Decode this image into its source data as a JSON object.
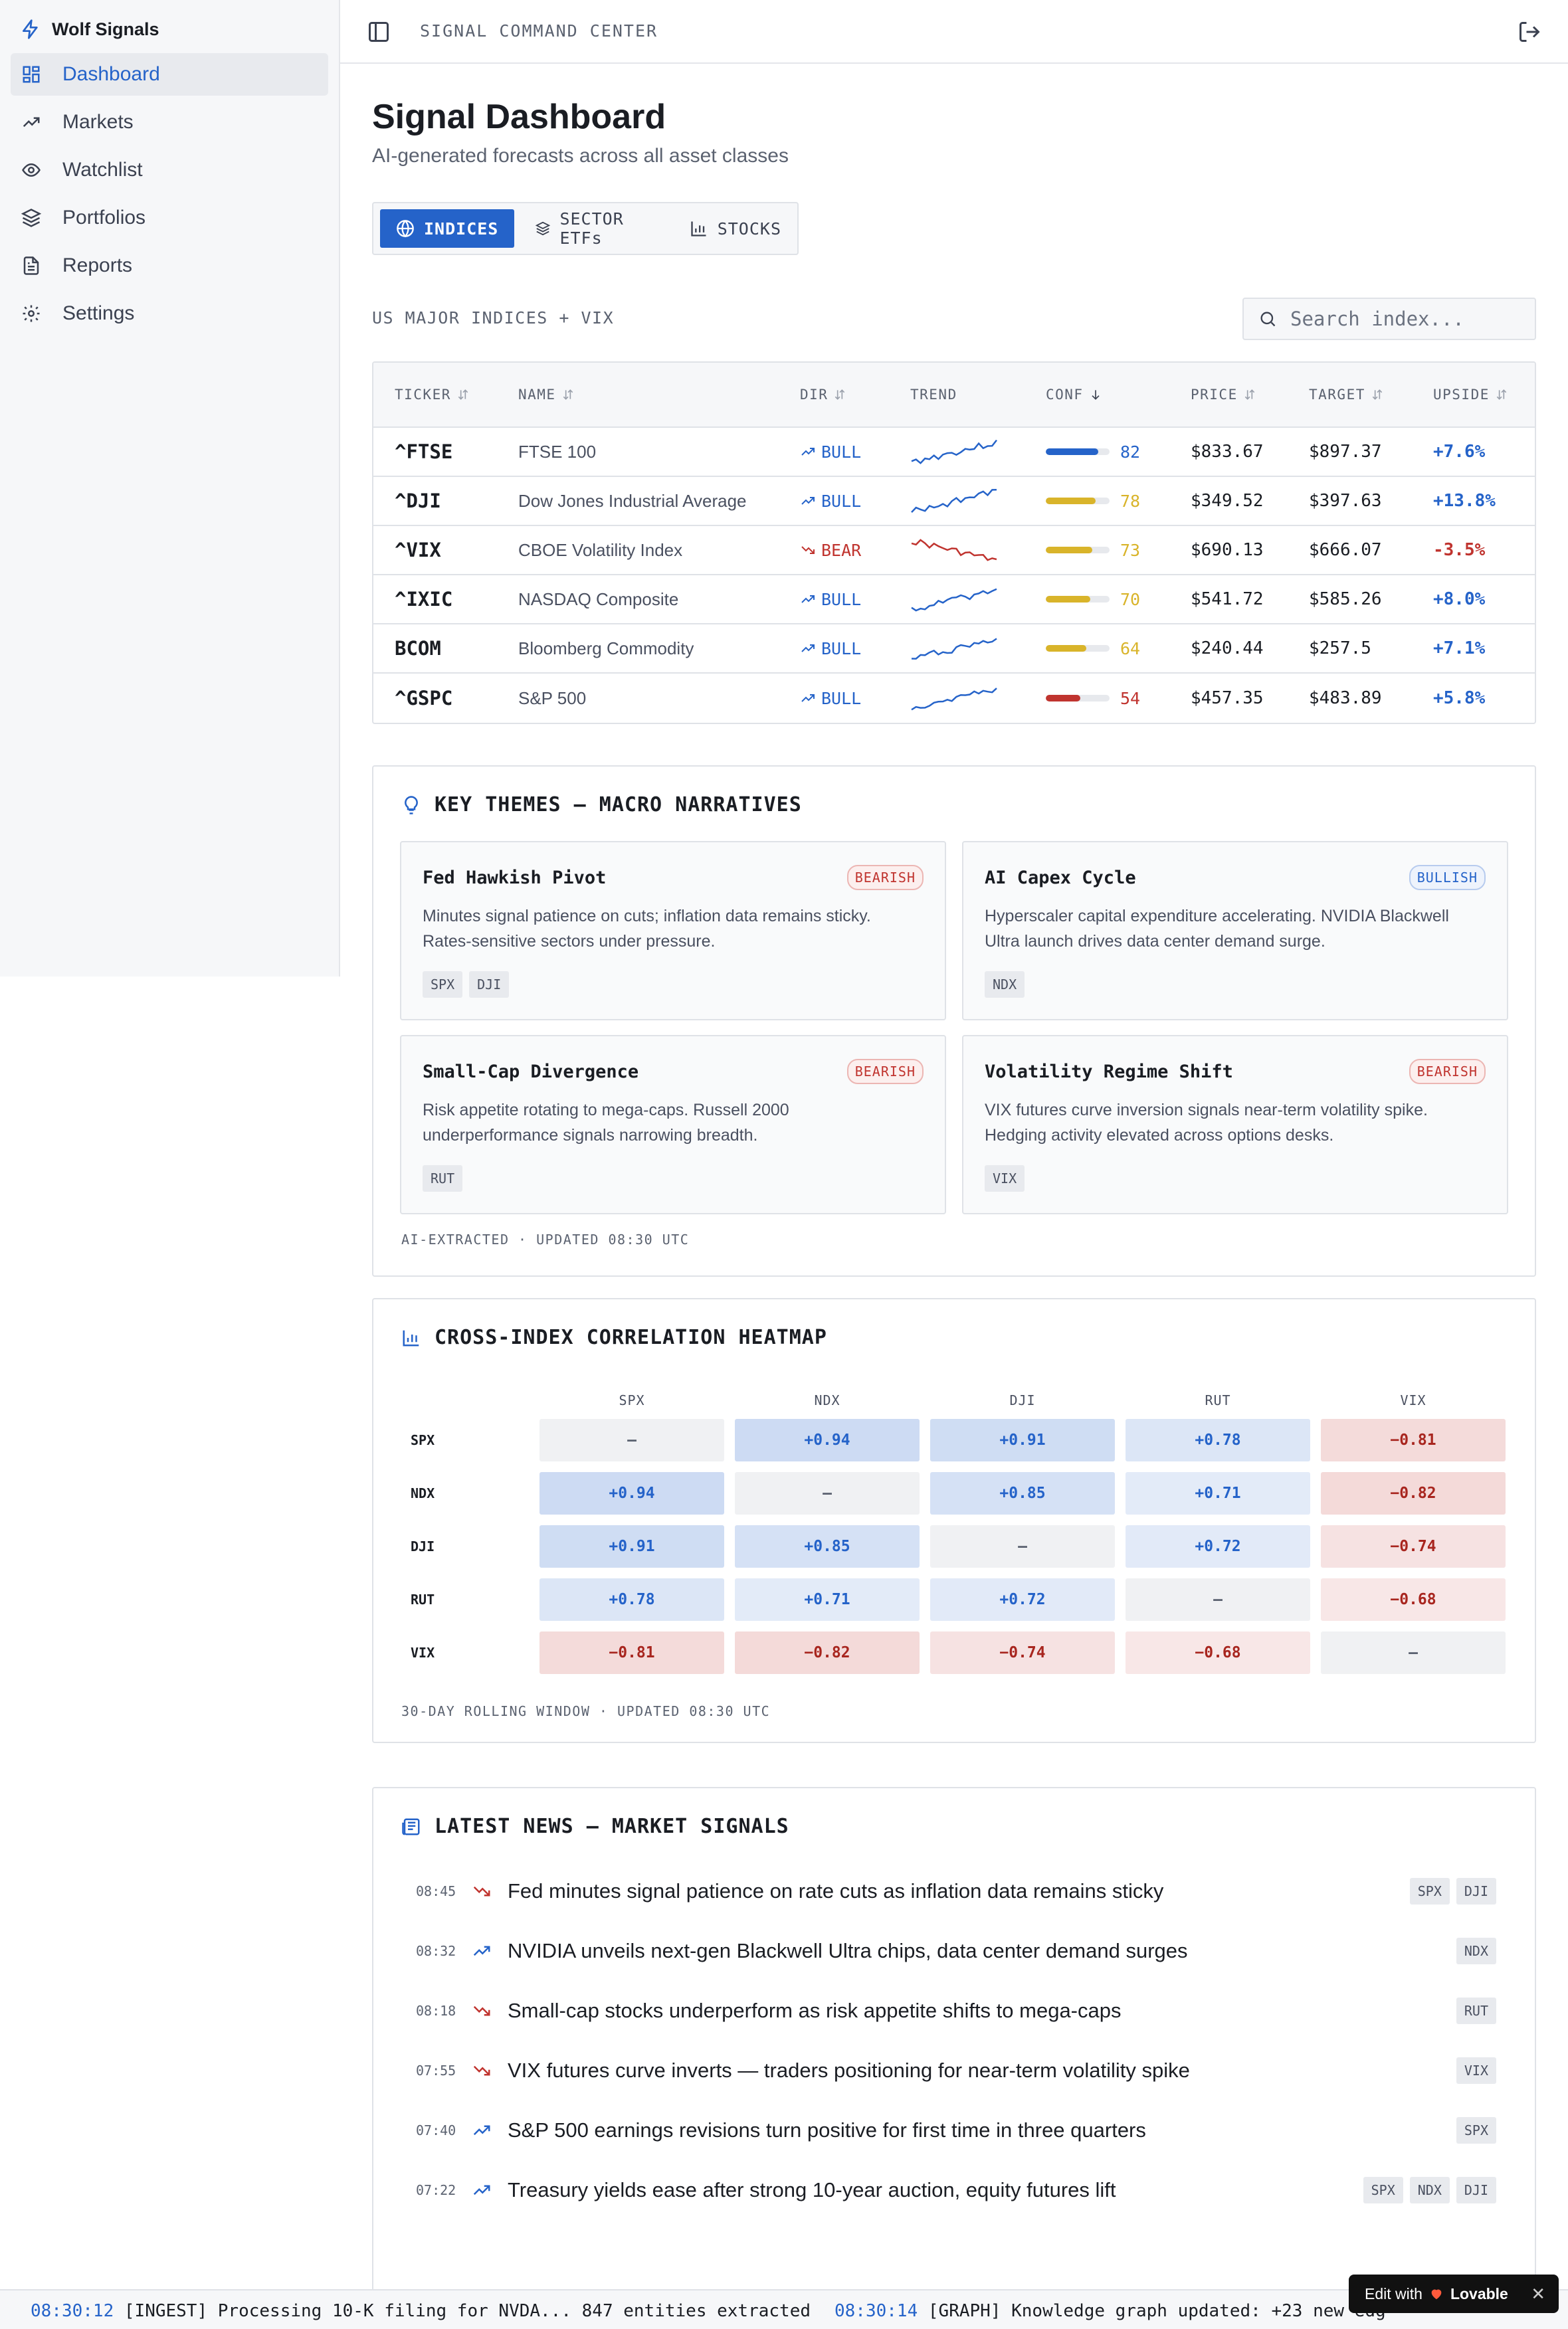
{
  "brand": "Wolf Signals",
  "sidebar": {
    "items": [
      {
        "label": "Dashboard",
        "icon": "dashboard-icon",
        "active": true
      },
      {
        "label": "Markets",
        "icon": "trending-up-icon"
      },
      {
        "label": "Watchlist",
        "icon": "eye-icon"
      },
      {
        "label": "Portfolios",
        "icon": "layers-icon"
      },
      {
        "label": "Reports",
        "icon": "file-text-icon"
      },
      {
        "label": "Settings",
        "icon": "gear-icon"
      }
    ]
  },
  "header": {
    "breadcrumb": "SIGNAL COMMAND CENTER"
  },
  "main": {
    "title": "Signal Dashboard",
    "subtitle": "AI-generated forecasts across all asset classes",
    "tabs": [
      {
        "label": "INDICES",
        "icon": "globe-icon",
        "active": true
      },
      {
        "label": "SECTOR ETFs",
        "icon": "layers-icon"
      },
      {
        "label": "STOCKS",
        "icon": "bar-chart-icon"
      }
    ],
    "section_label": "US MAJOR INDICES + VIX",
    "search_placeholder": "Search index...",
    "table": {
      "headers": {
        "ticker": "TICKER",
        "name": "NAME",
        "dir": "DIR",
        "trend": "TREND",
        "conf": "CONF",
        "price": "PRICE",
        "target": "TARGET",
        "upside": "UPSIDE"
      },
      "rows": [
        {
          "ticker": "^FTSE",
          "name": "FTSE 100",
          "dir": "BULL",
          "conf": "82",
          "price": "$833.67",
          "target": "$897.37",
          "upside": "+7.6%"
        },
        {
          "ticker": "^DJI",
          "name": "Dow Jones Industrial Average",
          "dir": "BULL",
          "conf": "78",
          "price": "$349.52",
          "target": "$397.63",
          "upside": "+13.8%"
        },
        {
          "ticker": "^VIX",
          "name": "CBOE Volatility Index",
          "dir": "BEAR",
          "conf": "73",
          "price": "$690.13",
          "target": "$666.07",
          "upside": "-3.5%"
        },
        {
          "ticker": "^IXIC",
          "name": "NASDAQ Composite",
          "dir": "BULL",
          "conf": "70",
          "price": "$541.72",
          "target": "$585.26",
          "upside": "+8.0%"
        },
        {
          "ticker": "BCOM",
          "name": "Bloomberg Commodity",
          "dir": "BULL",
          "conf": "64",
          "price": "$240.44",
          "target": "$257.5",
          "upside": "+7.1%"
        },
        {
          "ticker": "^GSPC",
          "name": "S&P 500",
          "dir": "BULL",
          "conf": "54",
          "price": "$457.35",
          "target": "$483.89",
          "upside": "+5.8%"
        }
      ]
    }
  },
  "themes": {
    "title": "KEY THEMES — MACRO NARRATIVES",
    "cards": [
      {
        "title": "Fed Hawkish Pivot",
        "sentiment": "BEARISH",
        "desc": "Minutes signal patience on cuts; inflation data remains sticky. Rates-sensitive sectors under pressure.",
        "tags": [
          "SPX",
          "DJI"
        ]
      },
      {
        "title": "AI Capex Cycle",
        "sentiment": "BULLISH",
        "desc": "Hyperscaler capital expenditure accelerating. NVIDIA Blackwell Ultra launch drives data center demand surge.",
        "tags": [
          "NDX"
        ]
      },
      {
        "title": "Small-Cap Divergence",
        "sentiment": "BEARISH",
        "desc": "Risk appetite rotating to mega-caps. Russell 2000 underperformance signals narrowing breadth.",
        "tags": [
          "RUT"
        ]
      },
      {
        "title": "Volatility Regime Shift",
        "sentiment": "BEARISH",
        "desc": "VIX futures curve inversion signals near-term volatility spike. Hedging activity elevated across options desks.",
        "tags": [
          "VIX"
        ]
      }
    ],
    "footnote": "AI-EXTRACTED · UPDATED 08:30 UTC"
  },
  "heatmap": {
    "title": "CROSS-INDEX CORRELATION HEATMAP",
    "labels": [
      "SPX",
      "NDX",
      "DJI",
      "RUT",
      "VIX"
    ],
    "cells": [
      [
        "—",
        "+0.94",
        "+0.91",
        "+0.78",
        "−0.81"
      ],
      [
        "+0.94",
        "—",
        "+0.85",
        "+0.71",
        "−0.82"
      ],
      [
        "+0.91",
        "+0.85",
        "—",
        "+0.72",
        "−0.74"
      ],
      [
        "+0.78",
        "+0.71",
        "+0.72",
        "—",
        "−0.68"
      ],
      [
        "−0.81",
        "−0.82",
        "−0.74",
        "−0.68",
        "—"
      ]
    ],
    "values": [
      [
        1,
        0.94,
        0.91,
        0.78,
        -0.81
      ],
      [
        0.94,
        1,
        0.85,
        0.71,
        -0.82
      ],
      [
        0.91,
        0.85,
        1,
        0.72,
        -0.74
      ],
      [
        0.78,
        0.71,
        0.72,
        1,
        -0.68
      ],
      [
        -0.81,
        -0.82,
        -0.74,
        -0.68,
        1
      ]
    ],
    "footnote": "30-DAY ROLLING WINDOW · UPDATED 08:30 UTC"
  },
  "news": {
    "title": "LATEST NEWS — MARKET SIGNALS",
    "items": [
      {
        "time": "08:45",
        "dir": "down",
        "headline": "Fed minutes signal patience on rate cuts as inflation data remains sticky",
        "tags": [
          "SPX",
          "DJI"
        ]
      },
      {
        "time": "08:32",
        "dir": "up",
        "headline": "NVIDIA unveils next-gen Blackwell Ultra chips, data center demand surges",
        "tags": [
          "NDX"
        ]
      },
      {
        "time": "08:18",
        "dir": "down",
        "headline": "Small-cap stocks underperform as risk appetite shifts to mega-caps",
        "tags": [
          "RUT"
        ]
      },
      {
        "time": "07:55",
        "dir": "down",
        "headline": "VIX futures curve inverts — traders positioning for near-term volatility spike",
        "tags": [
          "VIX"
        ]
      },
      {
        "time": "07:40",
        "dir": "up",
        "headline": "S&P 500 earnings revisions turn positive for first time in three quarters",
        "tags": [
          "SPX"
        ]
      },
      {
        "time": "07:22",
        "dir": "up",
        "headline": "Treasury yields ease after strong 10-year auction, equity futures lift",
        "tags": [
          "SPX",
          "NDX",
          "DJI"
        ]
      }
    ]
  },
  "ticker_feed": [
    {
      "time": "08:30:12",
      "text": "[INGEST] Processing 10-K filing for NVDA... 847 entities extracted"
    },
    {
      "time": "08:30:14",
      "text": "[GRAPH] Knowledge graph updated: +23 new edg"
    }
  ],
  "lovable": {
    "prefix": "Edit with",
    "brand": "Lovable"
  },
  "colors": {
    "accent": "#2563c9",
    "bear": "#c0342f",
    "conf_high": "#2563c9",
    "conf_mid": "#d9b42a",
    "conf_low": "#c0342f"
  }
}
